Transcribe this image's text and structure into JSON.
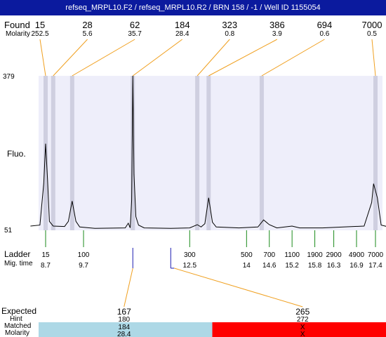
{
  "title": "refseq_MRPL10.F2 / refseq_MRPL10.R2 / BRN 158 / -1 / Well ID 1155054",
  "labels": {
    "found": "Found",
    "molarity": "Molarity",
    "fluo": "Fluo.",
    "ladder": "Ladder",
    "mig_time": "Mig. time",
    "expected": "Expected",
    "hint": "Hint",
    "matched": "Matched",
    "molarity_bottom": "Molarity"
  },
  "colors": {
    "title_bg": "#0b1a9e",
    "plot_bg": "#eeeefa",
    "peak_band": "#cfcfe0",
    "connector": "#f0a020",
    "ladder_tick": "#1a8a1a",
    "expected_tick": "#1a1ab0",
    "matched_ok": "#add8e6",
    "matched_fail": "#ff0000"
  },
  "chart_data": {
    "type": "line",
    "ylim_labels": [
      "51",
      "379"
    ],
    "y_range": [
      51,
      379
    ],
    "found_peaks": [
      {
        "size": "15",
        "molarity": "252.5",
        "mig_time": 8.7
      },
      {
        "size": "28",
        "molarity": "5.6",
        "mig_time": 8.9
      },
      {
        "size": "62",
        "molarity": "35.7",
        "mig_time": 9.4
      },
      {
        "size": "184",
        "molarity": "28.4",
        "mig_time": 11.0
      },
      {
        "size": "323",
        "molarity": "0.8",
        "mig_time": 12.7
      },
      {
        "size": "386",
        "molarity": "3.9",
        "mig_time": 13.0
      },
      {
        "size": "694",
        "molarity": "0.6",
        "mig_time": 14.4
      },
      {
        "size": "7000",
        "molarity": "0.5",
        "mig_time": 17.4
      }
    ],
    "ladder": [
      {
        "size": "15",
        "mig_time": "8.7"
      },
      {
        "size": "100",
        "mig_time": "9.7"
      },
      {
        "size": "300",
        "mig_time": "12.5"
      },
      {
        "size": "500",
        "mig_time": "14"
      },
      {
        "size": "700",
        "mig_time": "14.6"
      },
      {
        "size": "1100",
        "mig_time": "15.2"
      },
      {
        "size": "1900",
        "mig_time": "15.8"
      },
      {
        "size": "2900",
        "mig_time": "16.3"
      },
      {
        "size": "4900",
        "mig_time": "16.9"
      },
      {
        "size": "7000",
        "mig_time": "17.4"
      }
    ],
    "trace": [
      [
        8.3,
        60
      ],
      [
        8.55,
        62
      ],
      [
        8.65,
        150
      ],
      [
        8.7,
        235
      ],
      [
        8.75,
        160
      ],
      [
        8.8,
        70
      ],
      [
        8.9,
        60
      ],
      [
        9.2,
        59
      ],
      [
        9.3,
        70
      ],
      [
        9.4,
        113
      ],
      [
        9.5,
        70
      ],
      [
        9.6,
        58
      ],
      [
        10.0,
        55
      ],
      [
        10.8,
        56
      ],
      [
        10.88,
        66
      ],
      [
        10.93,
        56
      ],
      [
        10.97,
        115
      ],
      [
        11.0,
        379
      ],
      [
        11.03,
        170
      ],
      [
        11.08,
        80
      ],
      [
        11.15,
        62
      ],
      [
        11.3,
        56
      ],
      [
        12.0,
        55
      ],
      [
        12.5,
        56
      ],
      [
        12.7,
        63
      ],
      [
        12.8,
        58
      ],
      [
        12.9,
        65
      ],
      [
        13.0,
        120
      ],
      [
        13.1,
        68
      ],
      [
        13.2,
        58
      ],
      [
        13.8,
        56
      ],
      [
        14.3,
        58
      ],
      [
        14.45,
        73
      ],
      [
        14.6,
        63
      ],
      [
        14.8,
        56
      ],
      [
        15.2,
        60
      ],
      [
        15.4,
        56
      ],
      [
        16.0,
        56
      ],
      [
        17.1,
        60
      ],
      [
        17.3,
        110
      ],
      [
        17.35,
        150
      ],
      [
        17.45,
        120
      ],
      [
        17.55,
        62
      ],
      [
        17.75,
        58
      ]
    ],
    "expected": [
      {
        "size": "167",
        "hint": "180",
        "matched": "184",
        "molarity": "28.4",
        "status": "ok",
        "mig_time": 11.0
      },
      {
        "size": "265",
        "hint": "272",
        "matched": "X",
        "molarity": "X",
        "status": "fail",
        "mig_time": 12.0
      }
    ]
  }
}
